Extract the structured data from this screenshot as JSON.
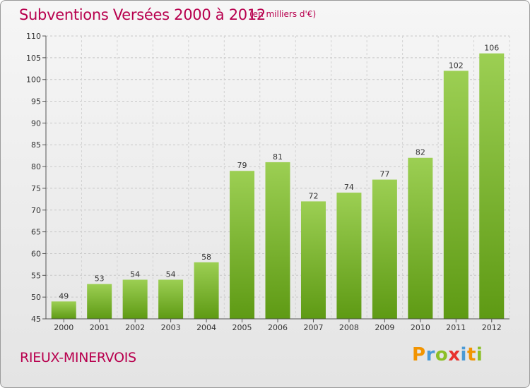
{
  "header": {
    "title": "Subventions Versées 2000 à 2012",
    "subtitle": "(en milliers d'€)"
  },
  "footer": {
    "commune": "RIEUX-MINERVOIS",
    "logo_text": "Proxiti"
  },
  "colors": {
    "title": "#b8004e",
    "bar_top": "#9ccf53",
    "bar_bottom": "#5e9a14",
    "logo": [
      "#f29400",
      "#4a9ad6",
      "#8cbf26",
      "#e8322e",
      "#4a9ad6",
      "#f29400",
      "#8cbf26"
    ]
  },
  "chart_data": {
    "type": "bar",
    "title": "Subventions Versées 2000 à 2012",
    "subtitle": "(en milliers d'€)",
    "categories": [
      "2000",
      "2001",
      "2002",
      "2003",
      "2004",
      "2005",
      "2006",
      "2007",
      "2008",
      "2009",
      "2010",
      "2011",
      "2012"
    ],
    "values": [
      49,
      53,
      54,
      54,
      58,
      79,
      81,
      72,
      74,
      77,
      82,
      102,
      106
    ],
    "ylim": [
      45,
      110
    ],
    "yticks": [
      45,
      50,
      55,
      60,
      65,
      70,
      75,
      80,
      85,
      90,
      95,
      100,
      105,
      110
    ],
    "grid": true,
    "legend": "none"
  }
}
